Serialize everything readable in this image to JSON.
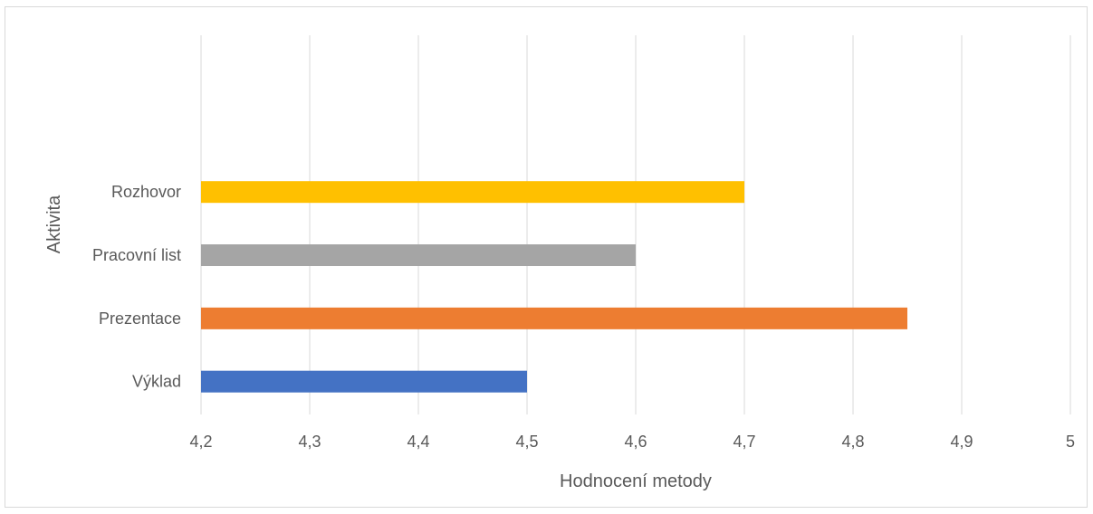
{
  "chart_data": {
    "type": "bar",
    "orientation": "horizontal",
    "categories": [
      "Výklad",
      "Prezentace",
      "Pracovní list",
      "Rozhovor"
    ],
    "values": [
      4.5,
      4.85,
      4.6,
      4.7
    ],
    "colors": [
      "#4472C4",
      "#ED7D31",
      "#A5A5A5",
      "#FFC000"
    ],
    "xlabel": "Hodnocení metody",
    "ylabel": "Aktivita",
    "xlim": [
      4.2,
      5
    ],
    "x_ticks": [
      4.2,
      4.3,
      4.4,
      4.5,
      4.6,
      4.7,
      4.8,
      4.9,
      5
    ],
    "x_tick_labels": [
      "4,2",
      "4,3",
      "4,4",
      "4,5",
      "4,6",
      "4,7",
      "4,8",
      "4,9",
      "5"
    ],
    "grid": "vertical",
    "legend": "none"
  }
}
